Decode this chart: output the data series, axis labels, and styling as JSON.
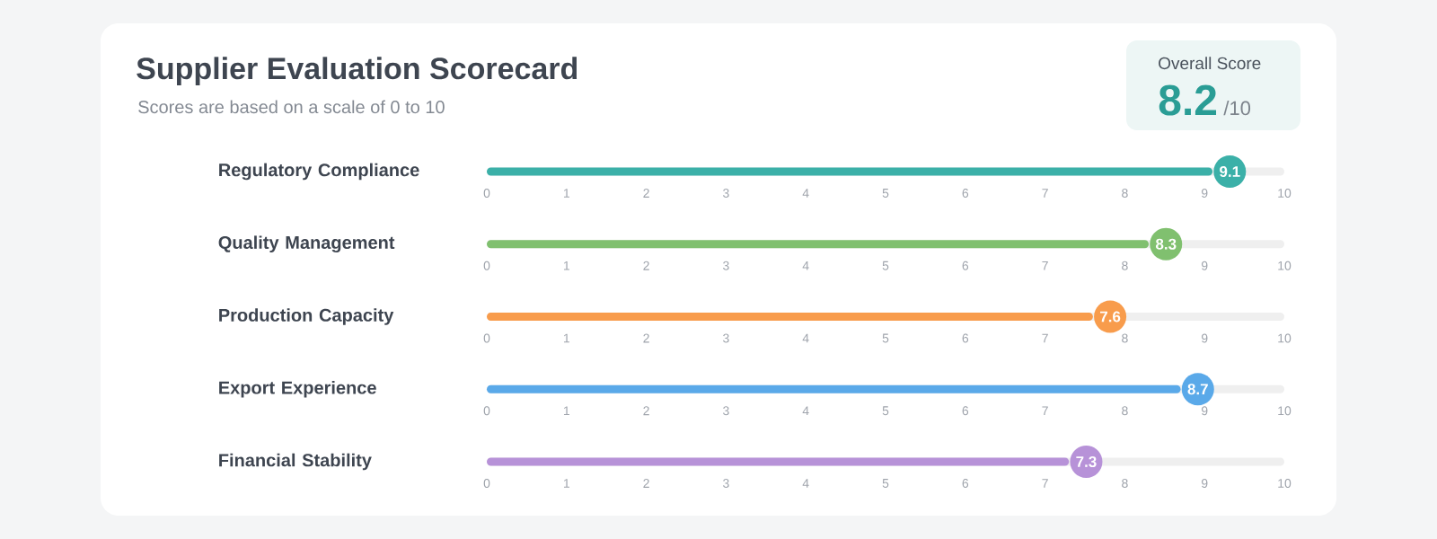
{
  "chart_data": [
    {
      "type": "bar",
      "title": "Supplier Evaluation Scorecard",
      "subtitle": "Scores are based on a scale of 0 to 10",
      "orientation": "horizontal",
      "categories": [
        "Regulatory Compliance"
      ],
      "values": [
        9.1
      ],
      "color": "#3bb0a8",
      "xlim": [
        0,
        10
      ],
      "xticks": [
        0,
        1,
        2,
        3,
        4,
        5,
        6,
        7,
        8,
        9,
        10
      ],
      "data_labels": true
    },
    {
      "type": "bar",
      "orientation": "horizontal",
      "categories": [
        "Quality Management"
      ],
      "values": [
        8.3
      ],
      "color": "#80c06f",
      "xlim": [
        0,
        10
      ],
      "xticks": [
        0,
        1,
        2,
        3,
        4,
        5,
        6,
        7,
        8,
        9,
        10
      ],
      "data_labels": true
    },
    {
      "type": "bar",
      "orientation": "horizontal",
      "categories": [
        "Production Capacity"
      ],
      "values": [
        7.6
      ],
      "color": "#f89c4c",
      "xlim": [
        0,
        10
      ],
      "xticks": [
        0,
        1,
        2,
        3,
        4,
        5,
        6,
        7,
        8,
        9,
        10
      ],
      "data_labels": true
    },
    {
      "type": "bar",
      "orientation": "horizontal",
      "categories": [
        "Export Experience"
      ],
      "values": [
        8.7
      ],
      "color": "#5aa9e9",
      "xlim": [
        0,
        10
      ],
      "xticks": [
        0,
        1,
        2,
        3,
        4,
        5,
        6,
        7,
        8,
        9,
        10
      ],
      "data_labels": true
    },
    {
      "type": "bar",
      "orientation": "horizontal",
      "categories": [
        "Financial Stability"
      ],
      "values": [
        7.3
      ],
      "color": "#b792d8",
      "xlim": [
        0,
        10
      ],
      "xticks": [
        0,
        1,
        2,
        3,
        4,
        5,
        6,
        7,
        8,
        9,
        10
      ],
      "data_labels": true
    },
    {
      "type": "other",
      "title": "Overall Score",
      "annotations": [
        "8.2",
        "/10"
      ]
    }
  ]
}
